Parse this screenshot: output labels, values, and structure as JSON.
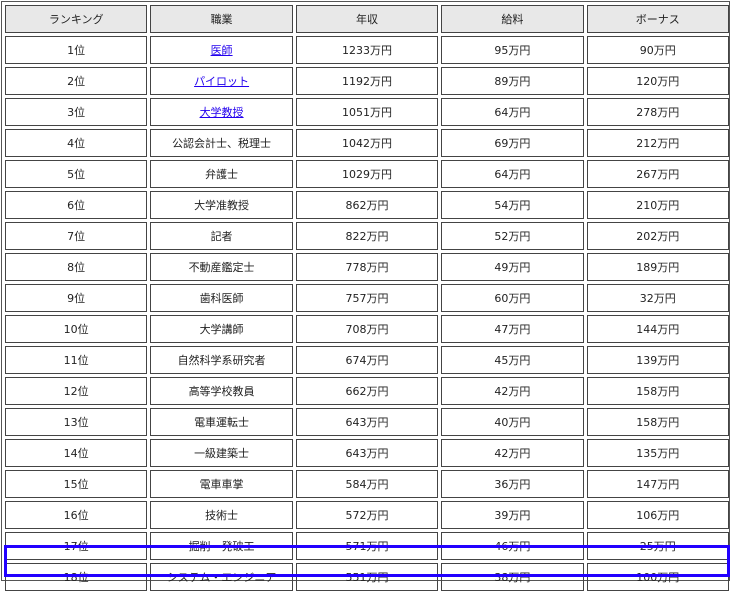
{
  "headers": [
    "ランキング",
    "職業",
    "年収",
    "給料",
    "ボーナス"
  ],
  "highlight_color": "#2200ff",
  "link_color": "#2200ee",
  "rows": [
    {
      "rank": "1位",
      "job": "医師",
      "link": true,
      "income": "1233万円",
      "salary": "95万円",
      "bonus": "90万円"
    },
    {
      "rank": "2位",
      "job": "パイロット",
      "link": true,
      "income": "1192万円",
      "salary": "89万円",
      "bonus": "120万円"
    },
    {
      "rank": "3位",
      "job": "大学教授",
      "link": true,
      "income": "1051万円",
      "salary": "64万円",
      "bonus": "278万円"
    },
    {
      "rank": "4位",
      "job": "公認会計士、税理士",
      "income": "1042万円",
      "salary": "69万円",
      "bonus": "212万円"
    },
    {
      "rank": "5位",
      "job": "弁護士",
      "income": "1029万円",
      "salary": "64万円",
      "bonus": "267万円"
    },
    {
      "rank": "6位",
      "job": "大学准教授",
      "income": "862万円",
      "salary": "54万円",
      "bonus": "210万円"
    },
    {
      "rank": "7位",
      "job": "記者",
      "income": "822万円",
      "salary": "52万円",
      "bonus": "202万円"
    },
    {
      "rank": "8位",
      "job": "不動産鑑定士",
      "income": "778万円",
      "salary": "49万円",
      "bonus": "189万円"
    },
    {
      "rank": "9位",
      "job": "歯科医師",
      "income": "757万円",
      "salary": "60万円",
      "bonus": "32万円"
    },
    {
      "rank": "10位",
      "job": "大学講師",
      "income": "708万円",
      "salary": "47万円",
      "bonus": "144万円"
    },
    {
      "rank": "11位",
      "job": "自然科学系研究者",
      "income": "674万円",
      "salary": "45万円",
      "bonus": "139万円"
    },
    {
      "rank": "12位",
      "job": "高等学校教員",
      "income": "662万円",
      "salary": "42万円",
      "bonus": "158万円"
    },
    {
      "rank": "13位",
      "job": "電車運転士",
      "income": "643万円",
      "salary": "40万円",
      "bonus": "158万円"
    },
    {
      "rank": "14位",
      "job": "一級建築士",
      "income": "643万円",
      "salary": "42万円",
      "bonus": "135万円"
    },
    {
      "rank": "15位",
      "job": "電車車掌",
      "income": "584万円",
      "salary": "36万円",
      "bonus": "147万円"
    },
    {
      "rank": "16位",
      "job": "技術士",
      "income": "572万円",
      "salary": "39万円",
      "bonus": "106万円"
    },
    {
      "rank": "17位",
      "job": "掘削・発破工",
      "income": "571万円",
      "salary": "46万円",
      "bonus": "25万円"
    },
    {
      "rank": "18位",
      "job": "システム・エンジニア",
      "income": "551万円",
      "salary": "38万円",
      "bonus": "100万円",
      "highlight": true
    }
  ]
}
